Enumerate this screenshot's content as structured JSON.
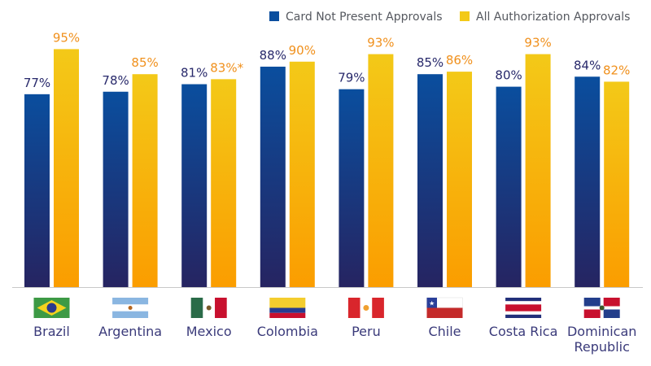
{
  "chart_data": {
    "type": "bar",
    "title": "",
    "xlabel": "",
    "ylabel": "",
    "ylim": [
      0,
      100
    ],
    "grid": false,
    "legend_position": "top-right",
    "categories": [
      "Brazil",
      "Argentina",
      "Mexico",
      "Colombia",
      "Peru",
      "Chile",
      "Costa Rica",
      "Dominican Republic"
    ],
    "category_lines": [
      [
        "Brazil"
      ],
      [
        "Argentina"
      ],
      [
        "Mexico"
      ],
      [
        "Colombia"
      ],
      [
        "Peru"
      ],
      [
        "Chile"
      ],
      [
        "Costa Rica"
      ],
      [
        "Dominican",
        "Republic"
      ]
    ],
    "series": [
      {
        "name": "Card Not Present Approvals",
        "color": "#0a4e9e",
        "color_bottom": "#262461",
        "label_color": "#28296b",
        "values": [
          77,
          78,
          81,
          88,
          79,
          85,
          80,
          84
        ],
        "labels": [
          "77%",
          "78%",
          "81%",
          "88%",
          "79%",
          "85%",
          "80%",
          "84%"
        ]
      },
      {
        "name": "All Authorization Approvals",
        "color": "#f3c918",
        "color_bottom": "#fb9d00",
        "label_color": "#f0901c",
        "values": [
          95,
          85,
          83,
          90,
          93,
          86,
          93,
          82
        ],
        "labels": [
          "95%",
          "85%",
          "83%*",
          "90%",
          "93%",
          "86%",
          "93%",
          "82%"
        ]
      }
    ],
    "flags": [
      "brazil-flag",
      "argentina-flag",
      "mexico-flag",
      "colombia-flag",
      "peru-flag",
      "chile-flag",
      "costa-rica-flag",
      "dominican-republic-flag"
    ]
  }
}
